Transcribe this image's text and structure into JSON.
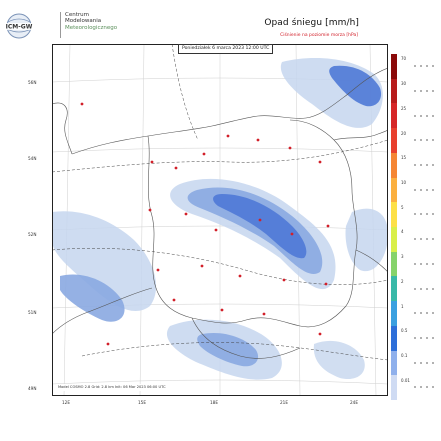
{
  "header": {
    "logo_badge": "ICM-GW",
    "logo_line1": "Centrum",
    "logo_line2": "Modelowania",
    "logo_line3": "Meteorologicznego",
    "title": "Opad śniegu [mm/h]",
    "subtitle": "Ciśnienie na poziomie morza [hPa]"
  },
  "map": {
    "forecast_label": "Poniedziałek 6 marca 2023 12:00 UTC",
    "model_caption": "Model COSMO 2.8 Grid: 2.8 km Init: 06 Mar 2023 06:00 UTC",
    "lat_labels": [
      "56N",
      "55N",
      "54N",
      "53N",
      "52N",
      "51N",
      "50N",
      "49N"
    ],
    "lon_labels": [
      "12E",
      "15E",
      "18E",
      "21E",
      "24E"
    ],
    "colors": {
      "background": "#ffffff",
      "border": "#333333",
      "grid": "#c8c8c8",
      "snow_light": "#c6d6ee",
      "snow_mid": "#8aa9e1",
      "snow_heavy": "#4f79d6",
      "city": "#d2202a"
    }
  },
  "legend": {
    "labels": [
      "70",
      "30",
      "25",
      "20",
      "15",
      "10",
      "5",
      "4",
      "3",
      "2",
      "1",
      "0.5",
      "0.1",
      "0.01"
    ],
    "colors": [
      "#8b0a0a",
      "#b71c1c",
      "#d62728",
      "#e8402e",
      "#f58634",
      "#fbb040",
      "#fde047",
      "#d9ef4a",
      "#86d36b",
      "#39b9a8",
      "#3ba0e0",
      "#2e6fd9",
      "#8fb0ec",
      "#cfdbf3"
    ]
  }
}
